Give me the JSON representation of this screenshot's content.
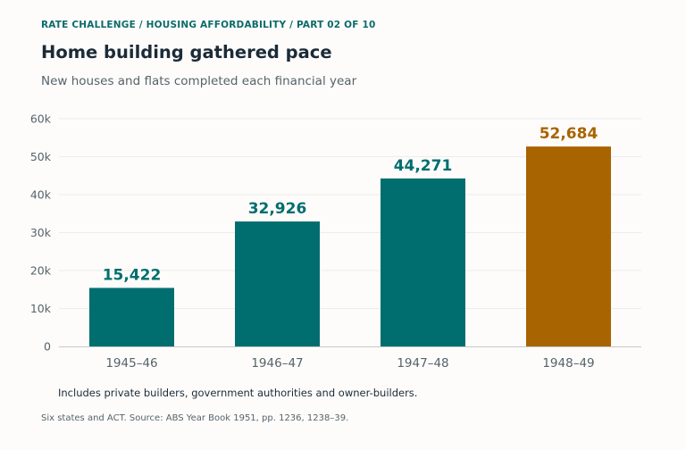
{
  "header": {
    "kicker": "RATE CHALLENGE  /  HOUSING AFFORDABILITY  /  PART 02 OF 10",
    "title": "Home building gathered pace",
    "subtitle": "New houses and flats completed each financial year"
  },
  "footer": {
    "note": "Includes private builders, government authorities and owner-builders.",
    "source": "Six states and ACT. Source: ABS Year Book 1951, pp. 1236, 1238–39."
  },
  "colors": {
    "bar": "#006e6e",
    "highlight": "#a86400",
    "grid": "#ececec",
    "axis": "#c8c8c8",
    "tick_text": "#55636b"
  },
  "chart_data": {
    "type": "bar",
    "categories": [
      "1945–46",
      "1946–47",
      "1947–48",
      "1948–49"
    ],
    "values": [
      15422,
      32926,
      44271,
      52684
    ],
    "value_labels": [
      "15,422",
      "32,926",
      "44,271",
      "52,684"
    ],
    "highlight_index": 3,
    "ylim": [
      0,
      60000
    ],
    "yticks": [
      0,
      10000,
      20000,
      30000,
      40000,
      50000,
      60000
    ],
    "ytick_labels": [
      "0",
      "10k",
      "20k",
      "30k",
      "40k",
      "50k",
      "60k"
    ],
    "grid": true,
    "xlabel": "",
    "ylabel": ""
  }
}
